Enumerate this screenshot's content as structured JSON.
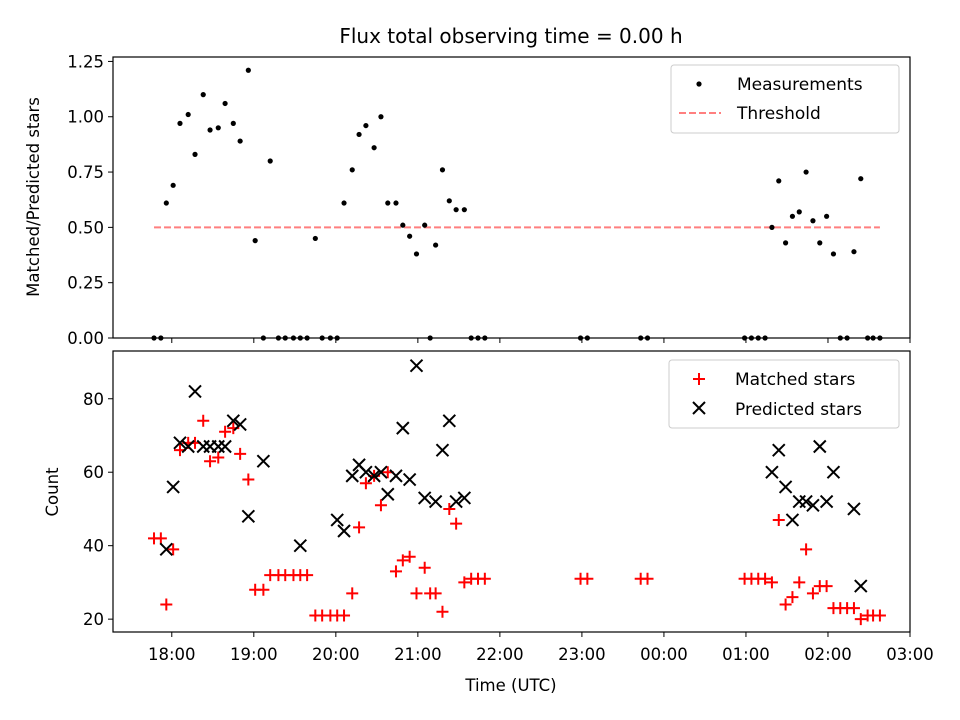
{
  "chart_data": [
    {
      "type": "scatter",
      "title": "Flux total observing time = 0.00 h",
      "xlabel": "",
      "ylabel": "Matched/Predicted stars",
      "ylim": [
        0,
        1.27
      ],
      "y_ticks": [
        "0.00",
        "0.25",
        "0.50",
        "0.75",
        "1.00",
        "1.25"
      ],
      "y_tick_values": [
        0,
        0.25,
        0.5,
        0.75,
        1.0,
        1.25
      ],
      "legend_position": "top-right",
      "series": [
        {
          "name": "Measurements",
          "marker": "dot",
          "color": "#000000",
          "x": [
            "17:47",
            "17:52",
            "17:56",
            "18:01",
            "18:06",
            "18:12",
            "18:17",
            "18:23",
            "18:28",
            "18:34",
            "18:39",
            "18:45",
            "18:50",
            "18:56",
            "19:01",
            "19:07",
            "19:12",
            "19:18",
            "19:23",
            "19:29",
            "19:34",
            "19:39",
            "19:45",
            "19:50",
            "19:56",
            "20:01",
            "20:06",
            "20:12",
            "20:17",
            "20:22",
            "20:28",
            "20:33",
            "20:38",
            "20:44",
            "20:49",
            "20:54",
            "20:59",
            "21:05",
            "21:09",
            "21:13",
            "21:18",
            "21:23",
            "21:28",
            "21:34",
            "21:39",
            "21:44",
            "21:49",
            "22:59",
            "23:04",
            "23:43",
            "23:48",
            "00:59",
            "01:04",
            "01:09",
            "01:14",
            "01:19",
            "01:24",
            "01:29",
            "01:34",
            "01:39",
            "01:44",
            "01:49",
            "01:54",
            "01:59",
            "02:04",
            "02:09",
            "02:14",
            "02:19",
            "02:24",
            "02:29",
            "02:33",
            "02:38"
          ],
          "y": [
            0,
            0,
            0.61,
            0.69,
            0.97,
            1.01,
            0.83,
            1.1,
            0.94,
            0.95,
            1.06,
            0.97,
            0.89,
            1.21,
            0.44,
            0,
            0.8,
            0,
            0,
            0,
            0,
            0,
            0.45,
            0,
            0,
            0,
            0.61,
            0.76,
            0.92,
            0.96,
            0.86,
            1.0,
            0.61,
            0.61,
            0.51,
            0.46,
            0.38,
            0.51,
            0,
            0.42,
            0.76,
            0.62,
            0.58,
            0.58,
            0,
            0,
            0,
            0,
            0,
            0,
            0,
            0,
            0,
            0,
            0,
            0.5,
            0.71,
            0.43,
            0.55,
            0.57,
            0.75,
            0.53,
            0.43,
            0.55,
            0.38,
            0,
            0,
            0.39,
            0.72,
            0,
            0,
            0
          ]
        },
        {
          "name": "Threshold",
          "style": "dashed",
          "color": "#ff7f7f",
          "x": [
            "17:47",
            "02:38"
          ],
          "y": [
            0.5,
            0.5
          ]
        }
      ]
    },
    {
      "type": "scatter",
      "title": "",
      "xlabel": "Time (UTC)",
      "ylabel": "Count",
      "ylim": [
        16.5,
        93
      ],
      "y_ticks": [
        "20",
        "40",
        "60",
        "80"
      ],
      "y_tick_values": [
        20,
        40,
        60,
        80
      ],
      "x_ticks": [
        "18:00",
        "19:00",
        "20:00",
        "21:00",
        "22:00",
        "23:00",
        "00:00",
        "01:00",
        "02:00",
        "03:00"
      ],
      "legend_position": "top-right",
      "series": [
        {
          "name": "Matched stars",
          "marker": "plus",
          "color": "#ff0000",
          "x": [
            "17:47",
            "17:52",
            "17:56",
            "18:01",
            "18:06",
            "18:12",
            "18:17",
            "18:23",
            "18:28",
            "18:34",
            "18:39",
            "18:45",
            "18:50",
            "18:56",
            "19:01",
            "19:07",
            "19:12",
            "19:18",
            "19:23",
            "19:29",
            "19:34",
            "19:39",
            "19:45",
            "19:50",
            "19:56",
            "20:01",
            "20:06",
            "20:12",
            "20:17",
            "20:22",
            "20:28",
            "20:33",
            "20:38",
            "20:44",
            "20:49",
            "20:54",
            "20:59",
            "21:05",
            "21:09",
            "21:13",
            "21:18",
            "21:23",
            "21:28",
            "21:34",
            "21:39",
            "21:44",
            "21:49",
            "22:59",
            "23:04",
            "23:43",
            "23:48",
            "00:59",
            "01:04",
            "01:09",
            "01:14",
            "01:19",
            "01:24",
            "01:29",
            "01:34",
            "01:39",
            "01:44",
            "01:49",
            "01:54",
            "01:59",
            "02:04",
            "02:09",
            "02:14",
            "02:19",
            "02:24",
            "02:29",
            "02:33",
            "02:38"
          ],
          "y": [
            42,
            42,
            24,
            39,
            66,
            68,
            68,
            74,
            63,
            64,
            71,
            72,
            65,
            58,
            28,
            28,
            32,
            32,
            32,
            32,
            32,
            32,
            21,
            21,
            21,
            21,
            21,
            27,
            45,
            57,
            59,
            51,
            60,
            33,
            36,
            37,
            27,
            34,
            27,
            27,
            22,
            50,
            46,
            30,
            31,
            31,
            31,
            31,
            31,
            31,
            31,
            31,
            31,
            31,
            31,
            30,
            47,
            24,
            26,
            30,
            39,
            27,
            29,
            29,
            23,
            23,
            23,
            23,
            20,
            21,
            21,
            21
          ]
        },
        {
          "name": "Predicted stars",
          "marker": "x",
          "color": "#000000",
          "x": [
            "17:56",
            "18:01",
            "18:06",
            "18:12",
            "18:17",
            "18:23",
            "18:28",
            "18:34",
            "18:39",
            "18:45",
            "18:50",
            "18:56",
            "19:07",
            "19:34",
            "20:01",
            "20:06",
            "20:12",
            "20:17",
            "20:22",
            "20:28",
            "20:33",
            "20:38",
            "20:44",
            "20:49",
            "20:54",
            "20:59",
            "21:05",
            "21:13",
            "21:18",
            "21:23",
            "21:28",
            "21:34",
            "01:19",
            "01:24",
            "01:29",
            "01:34",
            "01:39",
            "01:44",
            "01:49",
            "01:54",
            "01:59",
            "02:04",
            "02:19",
            "02:24"
          ],
          "y": [
            39,
            56,
            68,
            67,
            82,
            67,
            67,
            67,
            67,
            74,
            73,
            48,
            63,
            40,
            47,
            44,
            59,
            62,
            60,
            59,
            60,
            54,
            59,
            72,
            58,
            89,
            53,
            52,
            66,
            74,
            52,
            53,
            60,
            66,
            56,
            47,
            52,
            52,
            51,
            67,
            52,
            60,
            50,
            29
          ]
        }
      ]
    }
  ]
}
